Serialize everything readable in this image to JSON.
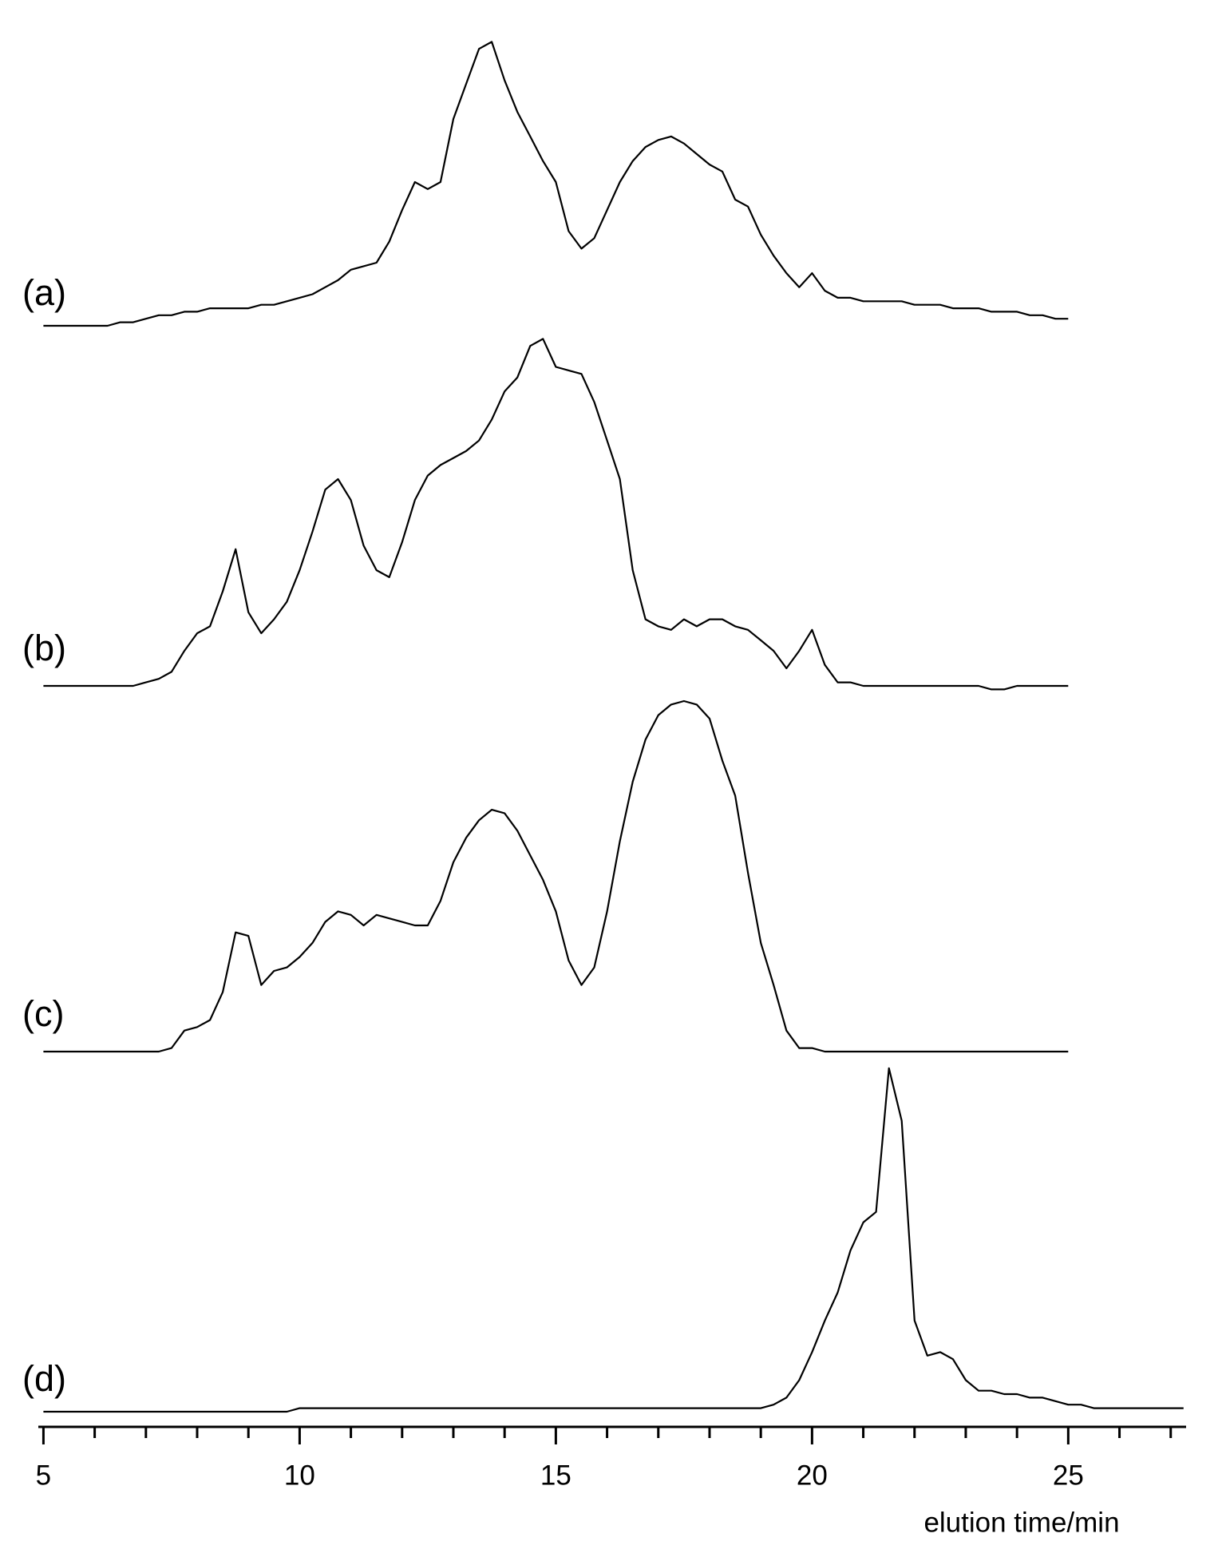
{
  "chart_data": {
    "type": "line",
    "xlabel": "elution time/min",
    "x": [
      5,
      5.25,
      5.5,
      5.75,
      6,
      6.25,
      6.5,
      6.75,
      7,
      7.25,
      7.5,
      7.75,
      8,
      8.25,
      8.5,
      8.75,
      9,
      9.25,
      9.5,
      9.75,
      10,
      10.25,
      10.5,
      10.75,
      11,
      11.25,
      11.5,
      11.75,
      12,
      12.25,
      12.5,
      12.75,
      13,
      13.25,
      13.5,
      13.75,
      14,
      14.25,
      14.5,
      14.75,
      15,
      15.25,
      15.5,
      15.75,
      16,
      16.25,
      16.5,
      16.75,
      17,
      17.25,
      17.5,
      17.75,
      18,
      18.25,
      18.5,
      18.75,
      19,
      19.25,
      19.5,
      19.75,
      20,
      20.25,
      20.5,
      20.75,
      21,
      21.25,
      21.5,
      21.75,
      22,
      22.25,
      22.5,
      22.75,
      23,
      23.25,
      23.5,
      23.75,
      24,
      24.25,
      24.5,
      24.75,
      25,
      25.25,
      25.5,
      25.75,
      26,
      26.25,
      26.5,
      26.75,
      27,
      27.25
    ],
    "series": [
      {
        "name": "(a)",
        "color": "#000000",
        "values": [
          0,
          0,
          0,
          0,
          0,
          0,
          1,
          1,
          2,
          3,
          3,
          4,
          4,
          5,
          5,
          5,
          5,
          6,
          6,
          7,
          8,
          9,
          11,
          13,
          16,
          17,
          18,
          24,
          33,
          41,
          39,
          41,
          59,
          69,
          79,
          81,
          70,
          61,
          54,
          47,
          41,
          27,
          22,
          25,
          33,
          41,
          47,
          51,
          53,
          54,
          52,
          49,
          46,
          44,
          36,
          34,
          26,
          20,
          15,
          11,
          15,
          10,
          8,
          8,
          7,
          7,
          7,
          7,
          6,
          6,
          6,
          5,
          5,
          5,
          4,
          4,
          4,
          3,
          3,
          2,
          2,
          null,
          null,
          null,
          null,
          null,
          null,
          null,
          null,
          null
        ]
      },
      {
        "name": "(b)",
        "color": "#000000",
        "values": [
          0,
          0,
          0,
          0,
          0,
          0,
          0,
          0,
          1,
          2,
          4,
          10,
          15,
          17,
          27,
          39,
          21,
          15,
          19,
          24,
          33,
          44,
          56,
          59,
          53,
          40,
          33,
          31,
          41,
          53,
          60,
          63,
          65,
          67,
          70,
          76,
          84,
          88,
          97,
          99,
          91,
          90,
          89,
          81,
          70,
          59,
          33,
          19,
          17,
          16,
          19,
          17,
          19,
          19,
          17,
          16,
          13,
          10,
          5,
          10,
          16,
          6,
          1,
          1,
          0,
          0,
          0,
          0,
          0,
          0,
          0,
          0,
          0,
          0,
          -1,
          -1,
          0,
          0,
          0,
          0,
          0,
          null,
          null,
          null,
          null,
          null,
          null,
          null,
          null,
          null
        ]
      },
      {
        "name": "(c)",
        "color": "#000000",
        "values": [
          0,
          0,
          0,
          0,
          0,
          0,
          0,
          0,
          0,
          0,
          1,
          6,
          7,
          9,
          17,
          34,
          33,
          19,
          23,
          24,
          27,
          31,
          37,
          40,
          39,
          36,
          39,
          38,
          37,
          36,
          36,
          43,
          54,
          61,
          66,
          69,
          68,
          63,
          56,
          49,
          40,
          26,
          19,
          24,
          40,
          60,
          77,
          89,
          96,
          99,
          100,
          99,
          95,
          83,
          73,
          51,
          31,
          19,
          6,
          1,
          1,
          0,
          0,
          0,
          0,
          0,
          0,
          0,
          0,
          0,
          0,
          0,
          0,
          0,
          0,
          0,
          0,
          0,
          0,
          0,
          0,
          null,
          null,
          null,
          null,
          null,
          null,
          null,
          null,
          null
        ]
      },
      {
        "name": "(d)",
        "color": "#000000",
        "values": [
          0,
          0,
          0,
          0,
          0,
          0,
          0,
          0,
          0,
          0,
          0,
          0,
          0,
          0,
          0,
          0,
          0,
          0,
          0,
          0,
          1,
          1,
          1,
          1,
          1,
          1,
          1,
          1,
          1,
          1,
          1,
          1,
          1,
          1,
          1,
          1,
          1,
          1,
          1,
          1,
          1,
          1,
          1,
          1,
          1,
          1,
          1,
          1,
          1,
          1,
          1,
          1,
          1,
          1,
          1,
          1,
          1,
          2,
          4,
          9,
          17,
          26,
          34,
          46,
          54,
          57,
          98,
          83,
          26,
          16,
          17,
          15,
          9,
          6,
          6,
          5,
          5,
          4,
          4,
          3,
          2,
          2,
          1,
          1,
          1,
          1,
          1,
          1,
          1,
          1
        ]
      }
    ],
    "xlim": [
      4.9,
      27.3
    ],
    "xticks": [
      5,
      10,
      15,
      20,
      25
    ],
    "xminor_ticks": [
      6,
      7,
      8,
      9,
      11,
      12,
      13,
      14,
      16,
      17,
      18,
      19,
      21,
      22,
      23,
      24,
      26,
      27
    ],
    "ylim": [
      0,
      100
    ]
  }
}
